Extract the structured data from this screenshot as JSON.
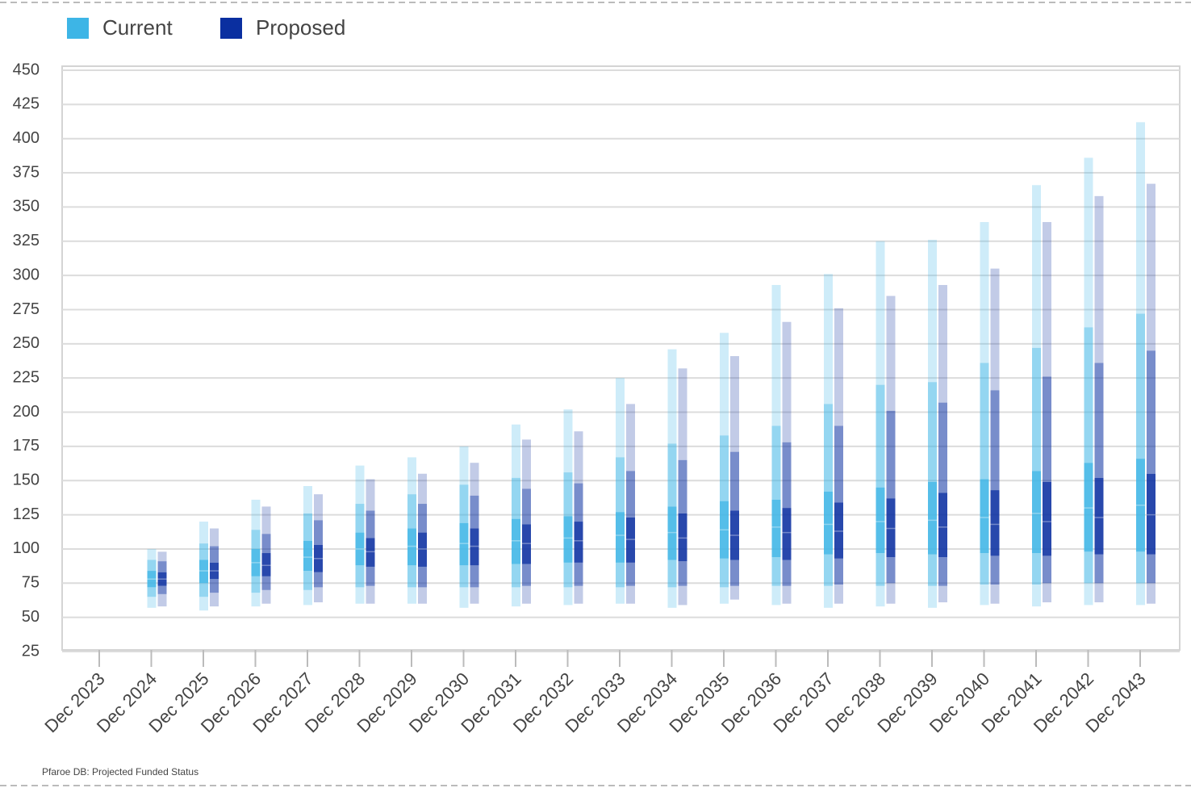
{
  "chart_data": {
    "type": "fan",
    "footnote": "Pfaroe DB: Projected Funded Status",
    "categories": [
      "Dec 2023",
      "Dec 2024",
      "Dec 2025",
      "Dec 2026",
      "Dec 2027",
      "Dec 2028",
      "Dec 2029",
      "Dec 2030",
      "Dec 2031",
      "Dec 2032",
      "Dec 2033",
      "Dec 2034",
      "Dec 2035",
      "Dec 2036",
      "Dec 2037",
      "Dec 2038",
      "Dec 2039",
      "Dec 2040",
      "Dec 2041",
      "Dec 2042",
      "Dec 2043"
    ],
    "series": [
      {
        "name": "Current",
        "color": "#3db5e6",
        "values": [
          null,
          [
            57,
            65,
            72,
            78,
            84,
            92,
            100
          ],
          [
            55,
            65,
            75,
            84,
            92,
            104,
            120
          ],
          [
            58,
            68,
            80,
            90,
            100,
            114,
            136
          ],
          [
            59,
            70,
            84,
            94,
            106,
            126,
            146
          ],
          [
            60,
            72,
            88,
            100,
            112,
            133,
            161
          ],
          [
            60,
            72,
            88,
            102,
            115,
            140,
            167
          ],
          [
            57,
            72,
            88,
            104,
            119,
            147,
            175
          ],
          [
            58,
            72,
            89,
            106,
            122,
            152,
            191
          ],
          [
            59,
            72,
            90,
            108,
            124,
            156,
            202
          ],
          [
            60,
            72,
            90,
            110,
            127,
            167,
            225
          ],
          [
            57,
            72,
            92,
            112,
            131,
            177,
            246
          ],
          [
            60,
            72,
            93,
            114,
            135,
            183,
            258
          ],
          [
            59,
            73,
            94,
            116,
            136,
            190,
            293
          ],
          [
            57,
            73,
            96,
            118,
            142,
            206,
            301
          ],
          [
            58,
            73,
            97,
            120,
            145,
            220,
            325
          ],
          [
            57,
            73,
            96,
            121,
            149,
            222,
            326
          ],
          [
            59,
            74,
            97,
            123,
            151,
            236,
            339
          ],
          [
            58,
            74,
            97,
            126,
            157,
            247,
            366
          ],
          [
            59,
            75,
            98,
            130,
            163,
            262,
            386
          ],
          [
            59,
            75,
            98,
            132,
            166,
            272,
            412
          ]
        ]
      },
      {
        "name": "Proposed",
        "color": "#0a2fa0",
        "values": [
          null,
          [
            58,
            67,
            73,
            78,
            83,
            91,
            98
          ],
          [
            58,
            68,
            78,
            84,
            90,
            102,
            115
          ],
          [
            60,
            70,
            80,
            88,
            97,
            111,
            131
          ],
          [
            61,
            72,
            83,
            93,
            103,
            121,
            140
          ],
          [
            60,
            73,
            87,
            98,
            108,
            128,
            151
          ],
          [
            60,
            72,
            87,
            100,
            112,
            133,
            155
          ],
          [
            60,
            72,
            88,
            102,
            115,
            139,
            163
          ],
          [
            60,
            73,
            89,
            104,
            118,
            144,
            180
          ],
          [
            60,
            73,
            90,
            106,
            120,
            148,
            186
          ],
          [
            60,
            73,
            90,
            107,
            123,
            157,
            206
          ],
          [
            59,
            73,
            91,
            108,
            126,
            165,
            232
          ],
          [
            63,
            73,
            92,
            110,
            128,
            171,
            241
          ],
          [
            60,
            73,
            92,
            112,
            130,
            178,
            266
          ],
          [
            60,
            74,
            93,
            113,
            134,
            190,
            276
          ],
          [
            60,
            75,
            94,
            115,
            137,
            201,
            285
          ],
          [
            61,
            73,
            94,
            116,
            141,
            207,
            293
          ],
          [
            60,
            74,
            95,
            118,
            143,
            216,
            305
          ],
          [
            61,
            75,
            95,
            120,
            149,
            226,
            339
          ],
          [
            61,
            75,
            96,
            123,
            152,
            236,
            358
          ],
          [
            60,
            75,
            96,
            125,
            155,
            245,
            367
          ]
        ]
      }
    ],
    "ylim": [
      25,
      450
    ],
    "yticks": [
      25,
      50,
      75,
      100,
      125,
      150,
      175,
      200,
      225,
      250,
      275,
      300,
      325,
      350,
      375,
      400,
      425,
      450
    ],
    "grid": true
  }
}
